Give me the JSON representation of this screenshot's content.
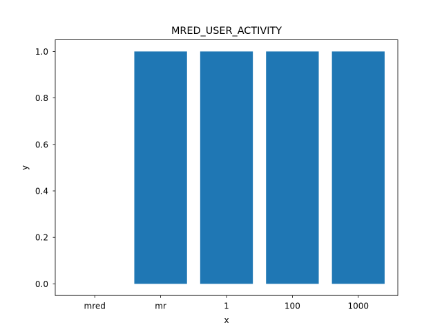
{
  "chart_data": {
    "type": "bar",
    "title": "MRED_USER_ACTIVITY",
    "xlabel": "x",
    "ylabel": "y",
    "categories": [
      "mred",
      "mr",
      "1",
      "100",
      "1000"
    ],
    "values": [
      0,
      1,
      1,
      1,
      1
    ],
    "ylim": [
      -0.05,
      1.05
    ],
    "yticks": [
      0.0,
      0.2,
      0.4,
      0.6,
      0.8,
      1.0
    ],
    "ytick_labels": [
      "0.0",
      "0.2",
      "0.4",
      "0.6",
      "0.8",
      "1.0"
    ],
    "grid": false,
    "bar_color": "#1f77b4"
  }
}
